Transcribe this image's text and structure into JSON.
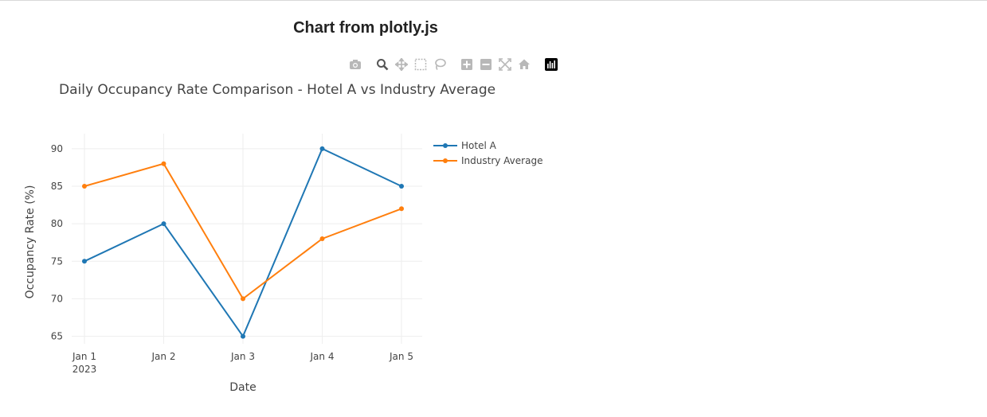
{
  "page": {
    "heading": "Chart from plotly.js"
  },
  "modebar": {
    "buttons": [
      {
        "name": "camera-icon"
      },
      {
        "name": "zoom-icon"
      },
      {
        "name": "pan-icon"
      },
      {
        "name": "box-select-icon"
      },
      {
        "name": "lasso-select-icon"
      },
      {
        "name": "zoom-in-icon"
      },
      {
        "name": "zoom-out-icon"
      },
      {
        "name": "autoscale-icon"
      },
      {
        "name": "reset-axes-icon"
      },
      {
        "name": "plotly-logo-icon"
      }
    ]
  },
  "chart_data": {
    "type": "line",
    "title": "Daily Occupancy Rate Comparison - Hotel A vs Industry Average",
    "xlabel": "Date",
    "ylabel": "Occupancy Rate (%)",
    "x": [
      "Jan 1",
      "Jan 2",
      "Jan 3",
      "Jan 4",
      "Jan 5"
    ],
    "x_year_label": "2023",
    "ylim": [
      64,
      92
    ],
    "yticks": [
      65,
      70,
      75,
      80,
      85,
      90
    ],
    "grid": true,
    "legend_position": "top-right",
    "series": [
      {
        "name": "Hotel A",
        "color": "#1f77b4",
        "values": [
          75,
          80,
          65,
          90,
          85
        ]
      },
      {
        "name": "Industry Average",
        "color": "#ff7f0e",
        "values": [
          85,
          88,
          70,
          78,
          82
        ]
      }
    ]
  }
}
